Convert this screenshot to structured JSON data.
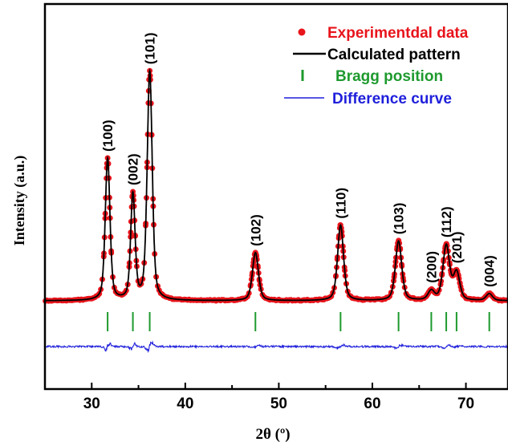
{
  "chart_data": {
    "type": "scatter",
    "title": "",
    "xlabel": "2θ (º)",
    "ylabel": "Intensity (a.u.)",
    "xlim": [
      25,
      74.5
    ],
    "x_ticks": [
      30,
      40,
      50,
      60,
      70
    ],
    "y_ticks": [],
    "grid": false,
    "legend_position": "top-right",
    "colors": {
      "experimental": "#e8141b",
      "calculated": "#000000",
      "bragg": "#1e9a2e",
      "difference": "#1f1fdc"
    },
    "series": [
      {
        "name": "Experimentdal data",
        "style": "markers"
      },
      {
        "name": "Calculated pattern",
        "style": "line"
      },
      {
        "name": "Bragg position",
        "style": "ticks"
      },
      {
        "name": "Difference curve",
        "style": "line"
      }
    ],
    "peaks": [
      {
        "label": "(100)",
        "x": 31.7,
        "height": 0.62,
        "width": 0.3
      },
      {
        "label": "(002)",
        "x": 34.4,
        "height": 0.46,
        "width": 0.28
      },
      {
        "label": "(101)",
        "x": 36.2,
        "height": 1.0,
        "width": 0.32
      },
      {
        "label": "(102)",
        "x": 47.5,
        "height": 0.21,
        "width": 0.38
      },
      {
        "label": "(110)",
        "x": 56.6,
        "height": 0.33,
        "width": 0.38
      },
      {
        "label": "(103)",
        "x": 62.8,
        "height": 0.26,
        "width": 0.4
      },
      {
        "label": "(200)",
        "x": 66.3,
        "height": 0.04,
        "width": 0.4
      },
      {
        "label": "(112)",
        "x": 67.9,
        "height": 0.24,
        "width": 0.42
      },
      {
        "label": "(201)",
        "x": 69.0,
        "height": 0.12,
        "width": 0.4
      },
      {
        "label": "(004)",
        "x": 72.5,
        "height": 0.03,
        "width": 0.4
      }
    ],
    "bragg_positions": [
      31.7,
      34.4,
      36.2,
      47.5,
      56.6,
      62.8,
      66.3,
      67.9,
      69.0,
      72.5
    ]
  }
}
